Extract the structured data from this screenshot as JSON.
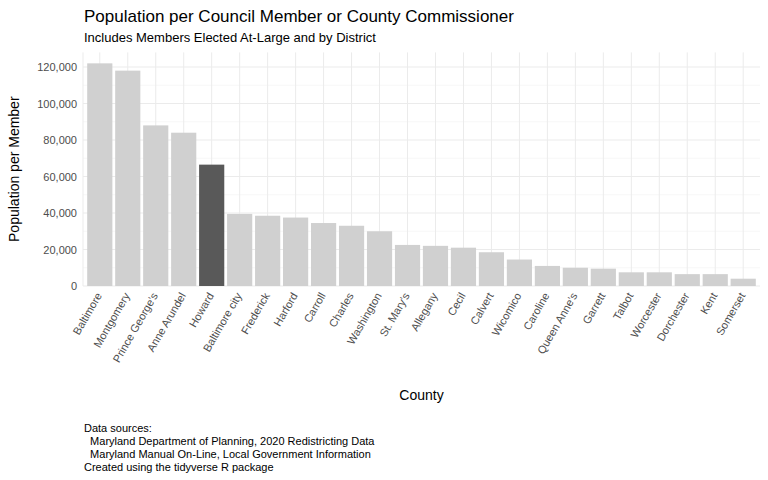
{
  "chart_data": {
    "type": "bar",
    "title": "Population per Council Member or County Commissioner",
    "subtitle": "Includes Members Elected At-Large and by District",
    "x_label": "County",
    "y_label": "Population per Member",
    "caption": [
      "Data sources:",
      "  Maryland Department of Planning, 2020 Redistricting Data",
      "  Maryland Manual On-Line, Local Government Information",
      "Created using the tidyverse R package"
    ],
    "categories": [
      "Baltimore",
      "Montgomery",
      "Prince George's",
      "Anne Arundel",
      "Howard",
      "Baltimore city",
      "Frederick",
      "Harford",
      "Carroll",
      "Charles",
      "Washington",
      "St. Mary's",
      "Allegany",
      "Cecil",
      "Calvert",
      "Wicomico",
      "Caroline",
      "Queen Anne's",
      "Garrett",
      "Talbot",
      "Worcester",
      "Dorchester",
      "Kent",
      "Somerset"
    ],
    "values": [
      122000,
      118000,
      88000,
      84000,
      66500,
      39500,
      38500,
      37500,
      34500,
      33000,
      30000,
      22500,
      22000,
      21000,
      18500,
      14500,
      11000,
      10000,
      9500,
      7500,
      7500,
      6500,
      6500,
      4000
    ],
    "colors": [
      "#d0d0d0",
      "#d0d0d0",
      "#d0d0d0",
      "#d0d0d0",
      "#595959",
      "#d0d0d0",
      "#d0d0d0",
      "#d0d0d0",
      "#d0d0d0",
      "#d0d0d0",
      "#d0d0d0",
      "#d0d0d0",
      "#d0d0d0",
      "#d0d0d0",
      "#d0d0d0",
      "#d0d0d0",
      "#d0d0d0",
      "#d0d0d0",
      "#d0d0d0",
      "#d0d0d0",
      "#d0d0d0",
      "#d0d0d0",
      "#d0d0d0",
      "#d0d0d0"
    ],
    "ylim": [
      0,
      128000
    ],
    "yticks": [
      0,
      {
        "value": 20000,
        "label": "20,000"
      },
      {
        "value": 40000,
        "label": "40,000"
      },
      {
        "value": 60000,
        "label": "60,000"
      },
      {
        "value": 80000,
        "label": "80,000"
      },
      {
        "value": 100000,
        "label": "100,000"
      },
      {
        "value": 120000,
        "label": "120,000"
      }
    ],
    "grid": true
  }
}
